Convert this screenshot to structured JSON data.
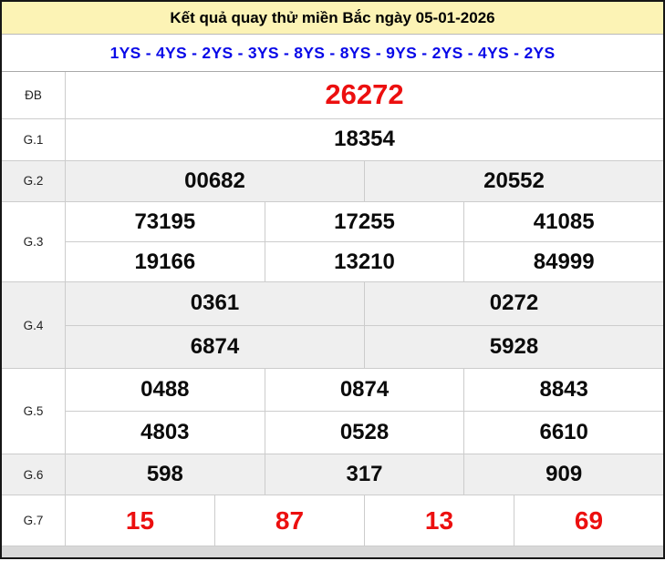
{
  "page": {
    "title": "Kết quả quay thử miền Bắc ngày 05-01-2026",
    "sequence": "1YS - 4YS - 2YS - 3YS - 8YS - 8YS - 9YS - 2YS - 4YS - 2YS"
  },
  "colors": {
    "title_bg": "#FCF3B5",
    "title_text": "#000000",
    "sequence_text": "#0909E8",
    "special_red": "#EC0F0F",
    "number_text": "#0B0B0B",
    "shaded_row_bg": "#EFEFEF",
    "grid_line": "#CCCCCC",
    "frame_border": "#161616",
    "footer_strip_bg": "#D8D8D8"
  },
  "table": {
    "rows": [
      {
        "label": "ĐB",
        "style": "db",
        "shaded": false,
        "lines": [
          [
            "26272"
          ]
        ]
      },
      {
        "label": "G.1",
        "style": "normal",
        "shaded": false,
        "lines": [
          [
            "18354"
          ]
        ]
      },
      {
        "label": "G.2",
        "style": "normal",
        "shaded": true,
        "lines": [
          [
            "00682",
            "20552"
          ]
        ]
      },
      {
        "label": "G.3",
        "style": "normal",
        "shaded": false,
        "lines": [
          [
            "73195",
            "17255",
            "41085"
          ],
          [
            "19166",
            "13210",
            "84999"
          ]
        ]
      },
      {
        "label": "G.4",
        "style": "normal",
        "shaded": true,
        "lines": [
          [
            "0361",
            "0272"
          ],
          [
            "6874",
            "5928"
          ]
        ]
      },
      {
        "label": "G.5",
        "style": "normal",
        "shaded": false,
        "lines": [
          [
            "0488",
            "0874",
            "8843"
          ],
          [
            "4803",
            "0528",
            "6610"
          ]
        ]
      },
      {
        "label": "G.6",
        "style": "normal",
        "shaded": true,
        "lines": [
          [
            "598",
            "317",
            "909"
          ]
        ]
      },
      {
        "label": "G.7",
        "style": "g7",
        "shaded": false,
        "lines": [
          [
            "15",
            "87",
            "13",
            "69"
          ]
        ]
      }
    ]
  }
}
